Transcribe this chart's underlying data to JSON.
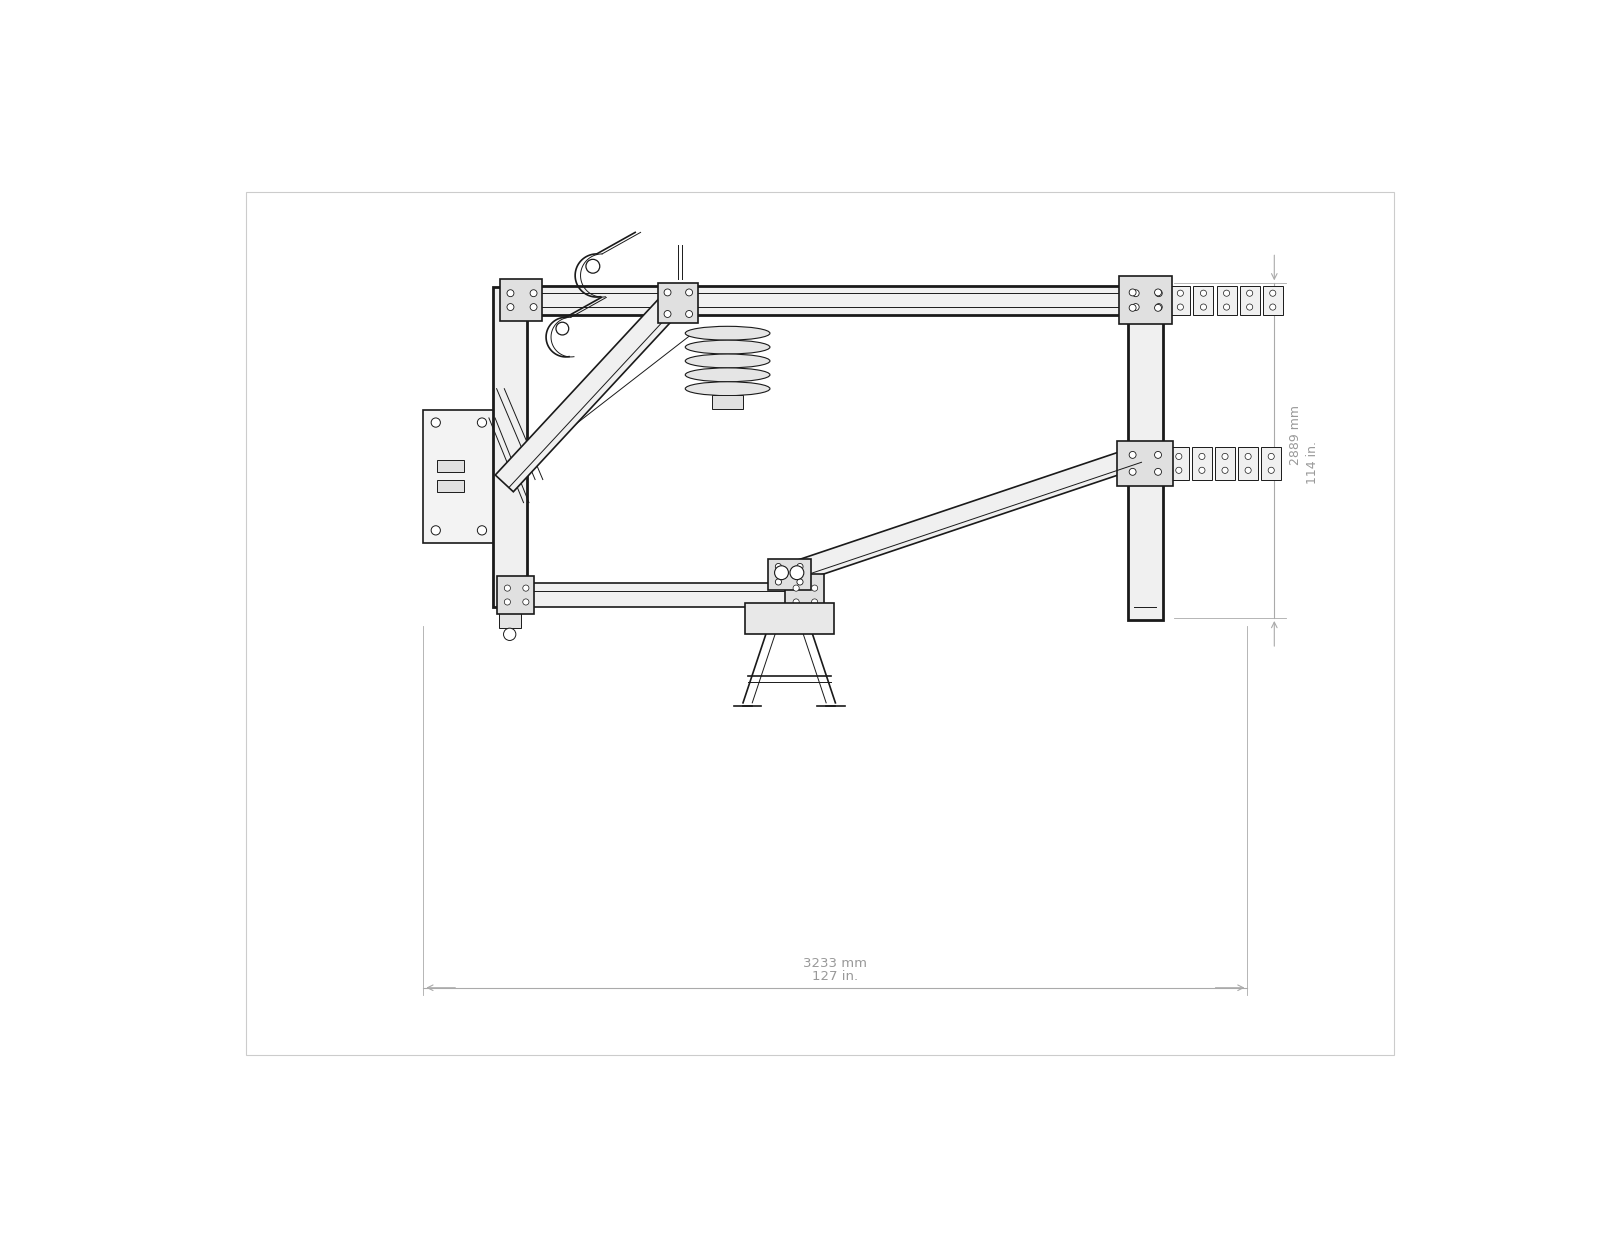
{
  "bg_color": "#ffffff",
  "line_color": "#1a1a1a",
  "dim_color": "#aaaaaa",
  "dim_label_color": "#999999",
  "width_mm": "3233 mm",
  "width_in": "127 in.",
  "height_mm": "2889 mm",
  "height_in": "114 in.",
  "border_color": "#cccccc",
  "fig_w": 16.0,
  "fig_h": 12.37,
  "dpi": 100,
  "xlim": [
    0,
    1600
  ],
  "ylim": [
    0,
    1237
  ]
}
